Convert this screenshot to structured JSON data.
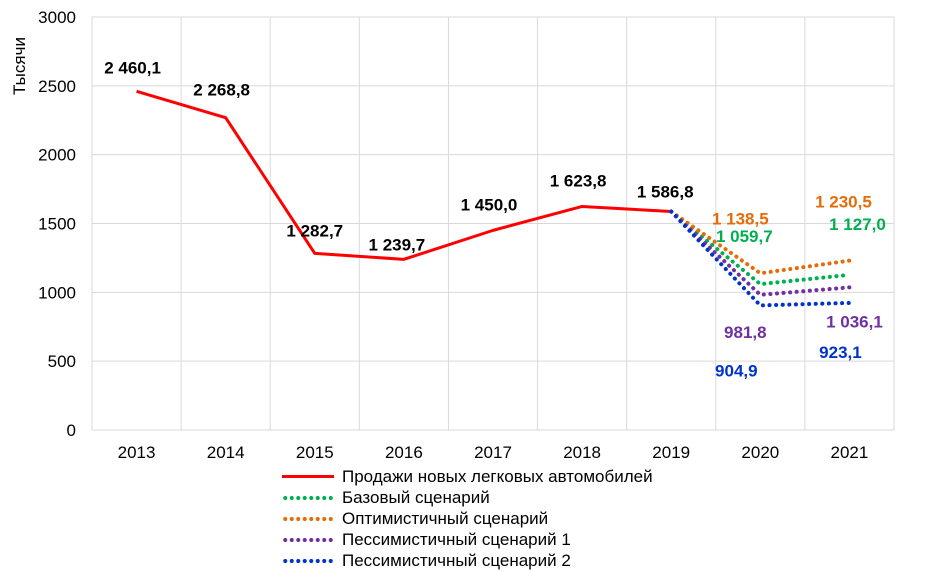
{
  "chart_data": {
    "type": "line",
    "title": "",
    "ylabel": "Тысячи",
    "xlabel": "",
    "ylim": [
      0,
      3000
    ],
    "yticks": [
      "0",
      "500",
      "1000",
      "1500",
      "2000",
      "2500",
      "3000"
    ],
    "categories": [
      "2013",
      "2014",
      "2015",
      "2016",
      "2017",
      "2018",
      "2019",
      "2020",
      "2021"
    ],
    "series": [
      {
        "name": "Продажи новых легковых автомобилей",
        "color": "#ff0000",
        "style": "solid",
        "x": [
          "2013",
          "2014",
          "2015",
          "2016",
          "2017",
          "2018",
          "2019"
        ],
        "values": [
          2460.1,
          2268.8,
          1282.7,
          1239.7,
          1450.0,
          1623.8,
          1586.8
        ],
        "labels": [
          "2 460,1",
          "2 268,8",
          "1 282,7",
          "1 239,7",
          "1 450,0",
          "1 623,8",
          "1 586,8"
        ]
      },
      {
        "name": "Базовый сценарий",
        "color": "#00b050",
        "style": "dotted",
        "x": [
          "2019",
          "2020",
          "2021"
        ],
        "values": [
          1586.8,
          1059.7,
          1127.0
        ],
        "labels": [
          "",
          "1 059,7",
          "1 127,0"
        ]
      },
      {
        "name": "Оптимистичный сценарий",
        "color": "#e46c0a",
        "style": "dotted",
        "x": [
          "2019",
          "2020",
          "2021"
        ],
        "values": [
          1586.8,
          1138.5,
          1230.5
        ],
        "labels": [
          "",
          "1 138,5",
          "1 230,5"
        ]
      },
      {
        "name": "Пессимистичный сценарий 1",
        "color": "#7030a0",
        "style": "dotted",
        "x": [
          "2019",
          "2020",
          "2021"
        ],
        "values": [
          1586.8,
          981.8,
          1036.1
        ],
        "labels": [
          "",
          "981,8",
          "1 036,1"
        ]
      },
      {
        "name": "Пессимистичный сценарий 2",
        "color": "#0033cc",
        "style": "dotted",
        "x": [
          "2019",
          "2020",
          "2021"
        ],
        "values": [
          1586.8,
          904.9,
          923.1
        ],
        "labels": [
          "",
          "904,9",
          "923,1"
        ]
      }
    ],
    "grid": true,
    "legend_position": "bottom"
  }
}
